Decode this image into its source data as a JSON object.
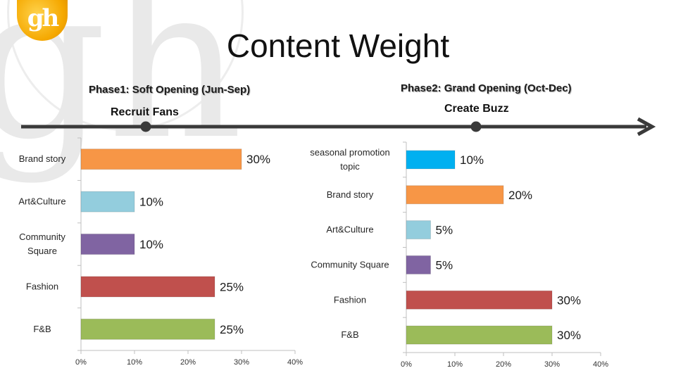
{
  "brand": {
    "logo_text": "gh",
    "watermark_text": "gh"
  },
  "title": "Content Weight",
  "timeline": {
    "phase1_title": "Phase1: Soft Opening (Jun-Sep)",
    "phase1_milestone": "Recruit Fans",
    "phase2_title": "Phase2: Grand Opening (Oct-Dec)",
    "phase2_milestone": "Create Buzz"
  },
  "chart_data": [
    {
      "type": "bar",
      "orientation": "horizontal",
      "title": "",
      "categories": [
        "Brand story",
        "Art&Culture",
        "Community Square",
        "Fashion",
        "F&B"
      ],
      "values": [
        30,
        10,
        10,
        25,
        25
      ],
      "data_labels": [
        "30%",
        "10%",
        "10%",
        "25%",
        "25%"
      ],
      "colors": [
        "#f79646",
        "#93cddd",
        "#8064a2",
        "#c0504d",
        "#9bbb59"
      ],
      "xlim": [
        0,
        40
      ],
      "xticks": [
        "0%",
        "10%",
        "20%",
        "30%",
        "40%"
      ],
      "grid": false,
      "legend": "none"
    },
    {
      "type": "bar",
      "orientation": "horizontal",
      "title": "",
      "categories": [
        "seasonal promotion topic",
        "Brand story",
        "Art&Culture",
        "Community Square",
        "Fashion",
        "F&B"
      ],
      "values": [
        10,
        20,
        5,
        5,
        30,
        30
      ],
      "data_labels": [
        "10%",
        "20%",
        "5%",
        "5%",
        "30%",
        "30%"
      ],
      "colors": [
        "#00b0f0",
        "#f79646",
        "#93cddd",
        "#8064a2",
        "#c0504d",
        "#9bbb59"
      ],
      "xlim": [
        0,
        40
      ],
      "xticks": [
        "0%",
        "10%",
        "20%",
        "30%",
        "40%"
      ],
      "grid": false,
      "legend": "none"
    }
  ]
}
